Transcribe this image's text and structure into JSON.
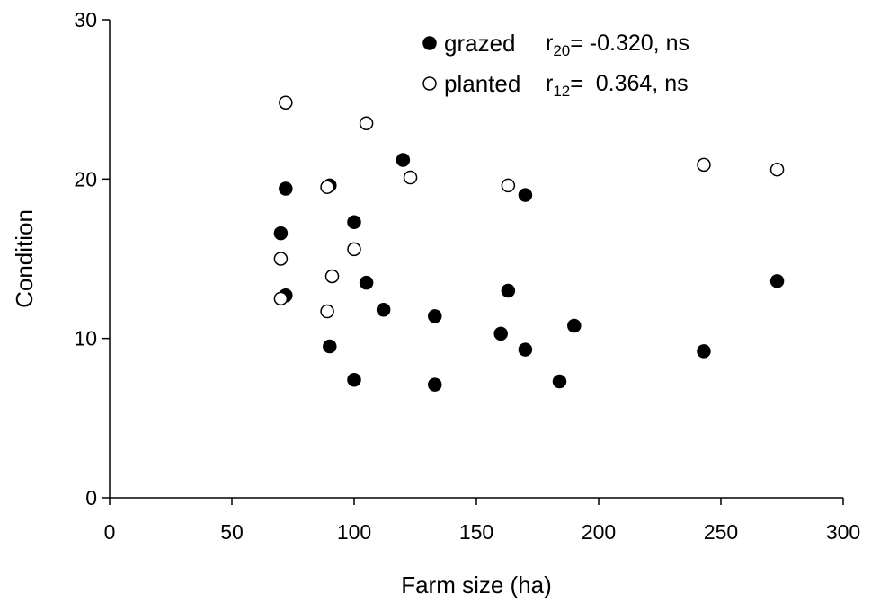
{
  "chart_data": {
    "type": "scatter",
    "xlabel": "Farm size (ha)",
    "ylabel": "Condition",
    "xlim": [
      0,
      300
    ],
    "ylim": [
      0,
      30
    ],
    "xticks": [
      "0",
      "50",
      "100",
      "150",
      "200",
      "250",
      "300"
    ],
    "yticks": [
      "0",
      "10",
      "20",
      "30"
    ],
    "grid": false,
    "legend_position": "top-right",
    "series": [
      {
        "name": "grazed",
        "marker": "filled-circle",
        "color": "#000000",
        "stat_var": "r",
        "stat_sub": "20",
        "stat_value": "= -0.320, ns",
        "points": [
          [
            70,
            16.6
          ],
          [
            72,
            12.7
          ],
          [
            72,
            19.4
          ],
          [
            90,
            19.6
          ],
          [
            90,
            9.5
          ],
          [
            100,
            17.3
          ],
          [
            100,
            7.4
          ],
          [
            105,
            13.5
          ],
          [
            112,
            11.8
          ],
          [
            120,
            21.2
          ],
          [
            133,
            11.4
          ],
          [
            133,
            7.1
          ],
          [
            160,
            10.3
          ],
          [
            163,
            13.0
          ],
          [
            170,
            19.0
          ],
          [
            170,
            9.3
          ],
          [
            184,
            7.3
          ],
          [
            190,
            10.8
          ],
          [
            243,
            9.2
          ],
          [
            273,
            13.6
          ]
        ]
      },
      {
        "name": "planted",
        "marker": "open-circle",
        "color": "#000000",
        "stat_var": "r",
        "stat_sub": "12",
        "stat_value": "=  0.364, ns",
        "points": [
          [
            72,
            24.8
          ],
          [
            105,
            23.5
          ],
          [
            123,
            20.1
          ],
          [
            89,
            19.5
          ],
          [
            163,
            19.6
          ],
          [
            243,
            20.9
          ],
          [
            273,
            20.6
          ],
          [
            100,
            15.6
          ],
          [
            70,
            15.0
          ],
          [
            91,
            13.9
          ],
          [
            70,
            12.5
          ],
          [
            89,
            11.7
          ]
        ]
      }
    ]
  }
}
